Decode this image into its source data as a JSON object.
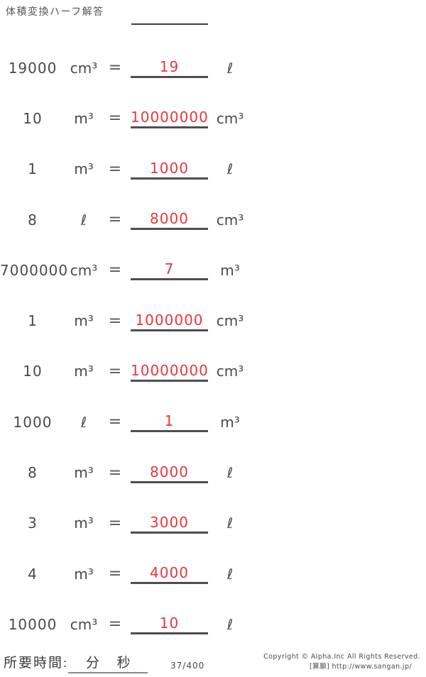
{
  "page": {
    "title": "体積変換ハーフ解答"
  },
  "worksheet": {
    "equals_sign": "=",
    "rows": [
      {
        "given_value": "19000",
        "given_unit": "cm³",
        "answer_value": "19",
        "answer_unit": "ℓ"
      },
      {
        "given_value": "10",
        "given_unit": "m³",
        "answer_value": "10000000",
        "answer_unit": "cm³"
      },
      {
        "given_value": "1",
        "given_unit": "m³",
        "answer_value": "1000",
        "answer_unit": "ℓ"
      },
      {
        "given_value": "8",
        "given_unit": "ℓ",
        "answer_value": "8000",
        "answer_unit": "cm³"
      },
      {
        "given_value": "7000000",
        "given_unit": "cm³",
        "answer_value": "7",
        "answer_unit": "m³"
      },
      {
        "given_value": "1",
        "given_unit": "m³",
        "answer_value": "1000000",
        "answer_unit": "cm³"
      },
      {
        "given_value": "10",
        "given_unit": "m³",
        "answer_value": "10000000",
        "answer_unit": "cm³"
      },
      {
        "given_value": "1000",
        "given_unit": "ℓ",
        "answer_value": "1",
        "answer_unit": "m³"
      },
      {
        "given_value": "8",
        "given_unit": "m³",
        "answer_value": "8000",
        "answer_unit": "ℓ"
      },
      {
        "given_value": "3",
        "given_unit": "m³",
        "answer_value": "3000",
        "answer_unit": "ℓ"
      },
      {
        "given_value": "4",
        "given_unit": "m³",
        "answer_value": "4000",
        "answer_unit": "ℓ"
      },
      {
        "given_value": "10000",
        "given_unit": "cm³",
        "answer_value": "10",
        "answer_unit": "ℓ"
      }
    ]
  },
  "footer": {
    "time_label": "所要時間:",
    "minutes_label": "分",
    "seconds_label": "秒",
    "page_indicator": "37/400",
    "copyright_line1": "Copyright © Alpha.Inc All Rights Reserved.",
    "copyright_line2": "[算願] http://www.sangan.jp/"
  },
  "colors": {
    "answer_red": "#e5383c",
    "text_dark": "#4a4a4a",
    "underline_dark": "#4f4f4f"
  }
}
